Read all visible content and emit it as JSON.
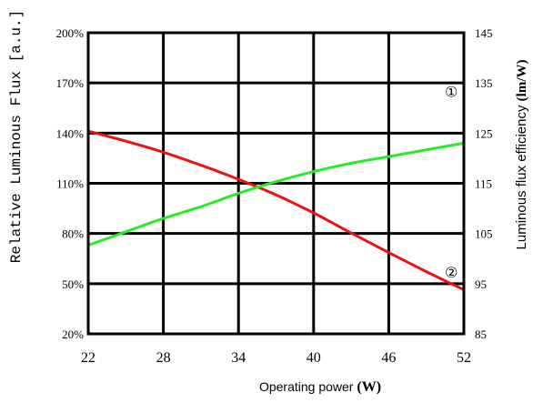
{
  "chart_data": {
    "type": "line",
    "title": "",
    "xlabel": "Operating power",
    "xlabel_unit": "(W)",
    "ylabel_left": "Relative Luminous Flux [a.u.]",
    "ylabel_right": "Luminous flux efficiency",
    "ylabel_right_unit": "(lm/W)",
    "x_ticks": [
      "22",
      "28",
      "34",
      "40",
      "46",
      "52"
    ],
    "xlim": [
      22,
      52
    ],
    "y_left_ticks": [
      "20%",
      "50%",
      "80%",
      "110%",
      "140%",
      "170%",
      "200%"
    ],
    "ylim_left": [
      20,
      200
    ],
    "y_right_ticks": [
      "85",
      "95",
      "105",
      "115",
      "125",
      "135",
      "145"
    ],
    "ylim_right": [
      85,
      145
    ],
    "grid": true,
    "series": [
      {
        "axis": "right",
        "color": "#ee1111",
        "x": [
          22,
          25,
          28,
          31,
          34,
          37,
          40,
          43,
          46,
          49,
          52
        ],
        "y": [
          125.4,
          123.4,
          121.2,
          118.6,
          115.8,
          112.7,
          109.1,
          105.1,
          101.2,
          97.4,
          93.8
        ]
      },
      {
        "axis": "left",
        "color": "#22ee22",
        "x": [
          22,
          25,
          28,
          31,
          34,
          37,
          40,
          43,
          46,
          49,
          52
        ],
        "y": [
          73,
          81,
          89,
          96,
          104,
          111,
          117,
          122,
          126,
          130,
          134
        ]
      }
    ],
    "annotations": [
      {
        "text": "①",
        "x": 51,
        "y_left": 165
      },
      {
        "text": "②",
        "x": 51,
        "y_left": 57
      }
    ]
  }
}
